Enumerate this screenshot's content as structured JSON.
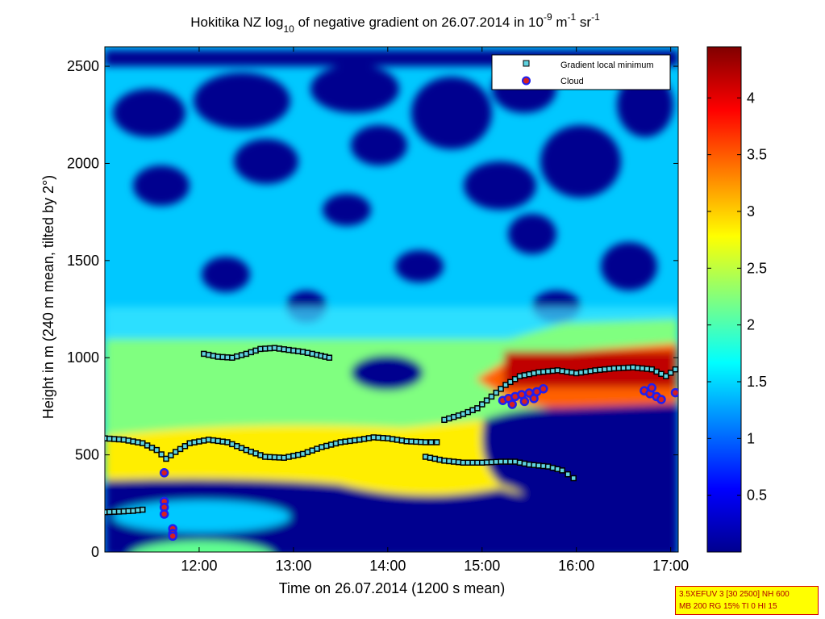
{
  "chart_data": {
    "type": "heatmap",
    "title": "Hokitika NZ log",
    "title_sub": "10",
    "title_rest": " of negative gradient on 26.07.2014 in 10",
    "title_exp1": "-9",
    "title_unit1": " m",
    "title_exp2": "-1",
    "title_unit2": " sr",
    "title_exp3": "-1",
    "xlabel": "Time on 26.07.2014 (1200 s mean)",
    "ylabel": "Height in m (240 m mean, tilted by 2°)",
    "xlim": [
      11.0,
      17.08
    ],
    "ylim": [
      0,
      2600
    ],
    "xticks": [
      12,
      13,
      14,
      15,
      16,
      17
    ],
    "xtick_labels": [
      "12:00",
      "13:00",
      "14:00",
      "15:00",
      "16:00",
      "17:00"
    ],
    "yticks": [
      0,
      500,
      1000,
      1500,
      2000,
      2500
    ],
    "ytick_labels": [
      "0",
      "500",
      "1000",
      "1500",
      "2000",
      "2500"
    ],
    "colorbar": {
      "range": [
        0,
        4.45
      ],
      "ticks": [
        0.5,
        1,
        1.5,
        2,
        2.5,
        3,
        3.5,
        4
      ],
      "tick_labels": [
        "0.5",
        "1",
        "1.5",
        "2",
        "2.5",
        "3",
        "3.5",
        "4"
      ],
      "colormap": "jet"
    },
    "legend": {
      "placement": "top-right",
      "entries": [
        "Gradient local minimum",
        "Cloud"
      ]
    },
    "series": [
      {
        "name": "Gradient local minimum",
        "marker": "square",
        "color": "#5fd3e0",
        "edge": "#000000",
        "segments": [
          [
            [
              11.0,
              205
            ],
            [
              11.15,
              208
            ],
            [
              11.3,
              212
            ],
            [
              11.4,
              218
            ]
          ],
          [
            [
              11.0,
              585
            ],
            [
              11.2,
              578
            ],
            [
              11.4,
              560
            ],
            [
              11.55,
              525
            ],
            [
              11.65,
              480
            ],
            [
              11.75,
              515
            ],
            [
              11.9,
              560
            ],
            [
              12.1,
              578
            ],
            [
              12.3,
              565
            ],
            [
              12.5,
              525
            ],
            [
              12.7,
              490
            ],
            [
              12.9,
              485
            ],
            [
              13.1,
              505
            ],
            [
              13.3,
              540
            ],
            [
              13.5,
              565
            ],
            [
              13.7,
              578
            ],
            [
              13.85,
              590
            ],
            [
              14.0,
              585
            ],
            [
              14.2,
              570
            ],
            [
              14.4,
              565
            ],
            [
              14.52,
              565
            ]
          ],
          [
            [
              12.05,
              1020
            ],
            [
              12.2,
              1005
            ],
            [
              12.35,
              1000
            ],
            [
              12.5,
              1020
            ],
            [
              12.65,
              1045
            ],
            [
              12.8,
              1050
            ],
            [
              12.95,
              1040
            ],
            [
              13.1,
              1030
            ],
            [
              13.25,
              1015
            ],
            [
              13.38,
              1000
            ]
          ],
          [
            [
              14.4,
              490
            ],
            [
              14.6,
              470
            ],
            [
              14.8,
              460
            ],
            [
              15.0,
              460
            ],
            [
              15.2,
              465
            ],
            [
              15.35,
              465
            ],
            [
              15.5,
              450
            ],
            [
              15.7,
              440
            ],
            [
              15.85,
              420
            ],
            [
              15.97,
              380
            ]
          ],
          [
            [
              14.6,
              680
            ],
            [
              14.8,
              710
            ],
            [
              14.95,
              740
            ],
            [
              15.1,
              800
            ],
            [
              15.25,
              860
            ],
            [
              15.4,
              905
            ],
            [
              15.6,
              925
            ],
            [
              15.8,
              935
            ],
            [
              16.0,
              920
            ],
            [
              16.2,
              935
            ],
            [
              16.4,
              945
            ],
            [
              16.6,
              950
            ],
            [
              16.8,
              940
            ],
            [
              16.95,
              905
            ],
            [
              17.05,
              940
            ]
          ]
        ]
      },
      {
        "name": "Cloud",
        "marker": "circle",
        "color": "#d62020",
        "edge": "#1f1ff0",
        "points": [
          [
            11.63,
            408
          ],
          [
            11.63,
            260
          ],
          [
            11.63,
            230
          ],
          [
            11.63,
            195
          ],
          [
            11.72,
            120
          ],
          [
            11.72,
            95
          ],
          [
            11.72,
            82
          ],
          [
            15.22,
            780
          ],
          [
            15.28,
            790
          ],
          [
            15.35,
            800
          ],
          [
            15.42,
            810
          ],
          [
            15.5,
            818
          ],
          [
            15.58,
            825
          ],
          [
            15.65,
            840
          ],
          [
            15.32,
            760
          ],
          [
            15.45,
            775
          ],
          [
            15.55,
            790
          ],
          [
            16.72,
            830
          ],
          [
            16.78,
            815
          ],
          [
            16.85,
            800
          ],
          [
            16.9,
            785
          ],
          [
            16.8,
            845
          ],
          [
            17.05,
            820
          ]
        ]
      }
    ]
  },
  "info_box": {
    "line1": "3.5XEFUV 3 [30 2500] NH 600",
    "line2": "MB 200 RG 15% TI 0 HI 15"
  }
}
